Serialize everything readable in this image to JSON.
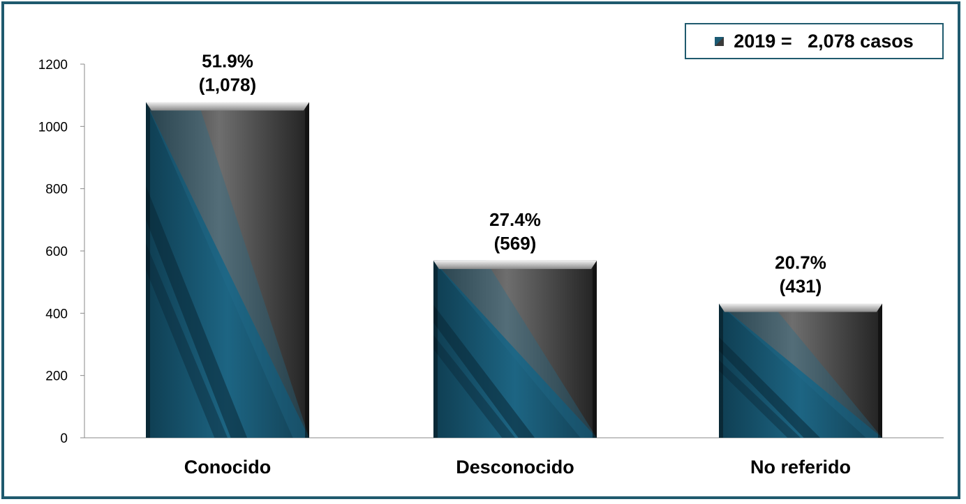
{
  "chart_data": {
    "type": "bar",
    "categories": [
      "Conocido",
      "Desconocido",
      "No referido"
    ],
    "values": [
      1078,
      569,
      431
    ],
    "data_labels": [
      {
        "pct": "51.9%",
        "count": "(1,078)"
      },
      {
        "pct": "27.4%",
        "count": "(569)"
      },
      {
        "pct": "20.7%",
        "count": "(431)"
      }
    ],
    "ylim": [
      0,
      1200
    ],
    "yticks": [
      "0",
      "200",
      "400",
      "600",
      "800",
      "1000",
      "1200"
    ],
    "legend": {
      "year": "2019 =",
      "total": "2,078 casos",
      "position": "top-right"
    },
    "grid": false,
    "colors": {
      "frame": "#1f5a6e",
      "bar_teal": "#1b5a73",
      "bar_gray": "#3b3b3b"
    }
  }
}
